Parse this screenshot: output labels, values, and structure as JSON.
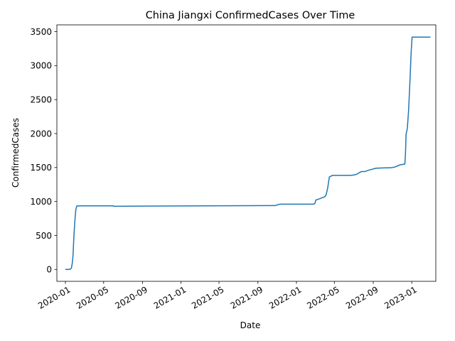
{
  "chart_data": {
    "type": "line",
    "title": "China Jiangxi ConfirmedCases Over Time",
    "xlabel": "Date",
    "ylabel": "ConfirmedCases",
    "x_tick_labels": [
      "2020-01",
      "2020-05",
      "2020-09",
      "2021-01",
      "2021-05",
      "2021-09",
      "2022-01",
      "2022-05",
      "2022-09",
      "2023-01"
    ],
    "x_ticks": [
      "2020-01-01",
      "2020-05-01",
      "2020-09-01",
      "2021-01-01",
      "2021-05-01",
      "2021-09-01",
      "2022-01-01",
      "2022-05-01",
      "2022-09-01",
      "2023-01-01"
    ],
    "y_tick_labels": [
      "0",
      "500",
      "1000",
      "1500",
      "2000",
      "2500",
      "3000",
      "3500"
    ],
    "y_ticks": [
      0,
      500,
      1000,
      1500,
      2000,
      2500,
      3000,
      3500
    ],
    "xlim": [
      "2019-12-05",
      "2023-03-18"
    ],
    "ylim": [
      -175,
      3600
    ],
    "grid": false,
    "legend": "none",
    "line_color": "#1f77b4",
    "series": [
      {
        "x": [
          "2020-01-01",
          "2020-01-15",
          "2020-01-20",
          "2020-01-23",
          "2020-01-25",
          "2020-01-28",
          "2020-01-31",
          "2020-02-03",
          "2020-02-06",
          "2020-02-09",
          "2020-02-12",
          "2020-02-16",
          "2020-02-20",
          "2020-03-01",
          "2020-06-01",
          "2020-06-02",
          "2020-08-31",
          "2021-10-26",
          "2021-11-01",
          "2021-11-10",
          "2022-02-25",
          "2022-03-01",
          "2022-03-03",
          "2022-03-15",
          "2022-04-01",
          "2022-04-05",
          "2022-04-10",
          "2022-04-15",
          "2022-04-25",
          "2022-05-15",
          "2022-06-20",
          "2022-07-01",
          "2022-07-10",
          "2022-07-25",
          "2022-08-01",
          "2022-08-05",
          "2022-08-20",
          "2022-08-25",
          "2022-09-10",
          "2022-10-10",
          "2022-10-20",
          "2022-11-01",
          "2022-11-10",
          "2022-11-25",
          "2022-12-10",
          "2022-12-12",
          "2022-12-14",
          "2022-12-18",
          "2022-12-22",
          "2022-12-26",
          "2022-12-30",
          "2023-01-02",
          "2023-01-05",
          "2023-03-01"
        ],
        "y": [
          0,
          0,
          20,
          100,
          200,
          500,
          720,
          880,
          935,
          935,
          935,
          935,
          936,
          936,
          936,
          930,
          932,
          940,
          950,
          961,
          961,
          975,
          1020,
          1040,
          1070,
          1100,
          1200,
          1360,
          1385,
          1385,
          1385,
          1390,
          1400,
          1440,
          1440,
          1440,
          1465,
          1470,
          1490,
          1495,
          1495,
          1500,
          1510,
          1540,
          1550,
          1700,
          1990,
          2080,
          2350,
          2750,
          3200,
          3420,
          3420,
          3420
        ]
      }
    ]
  }
}
